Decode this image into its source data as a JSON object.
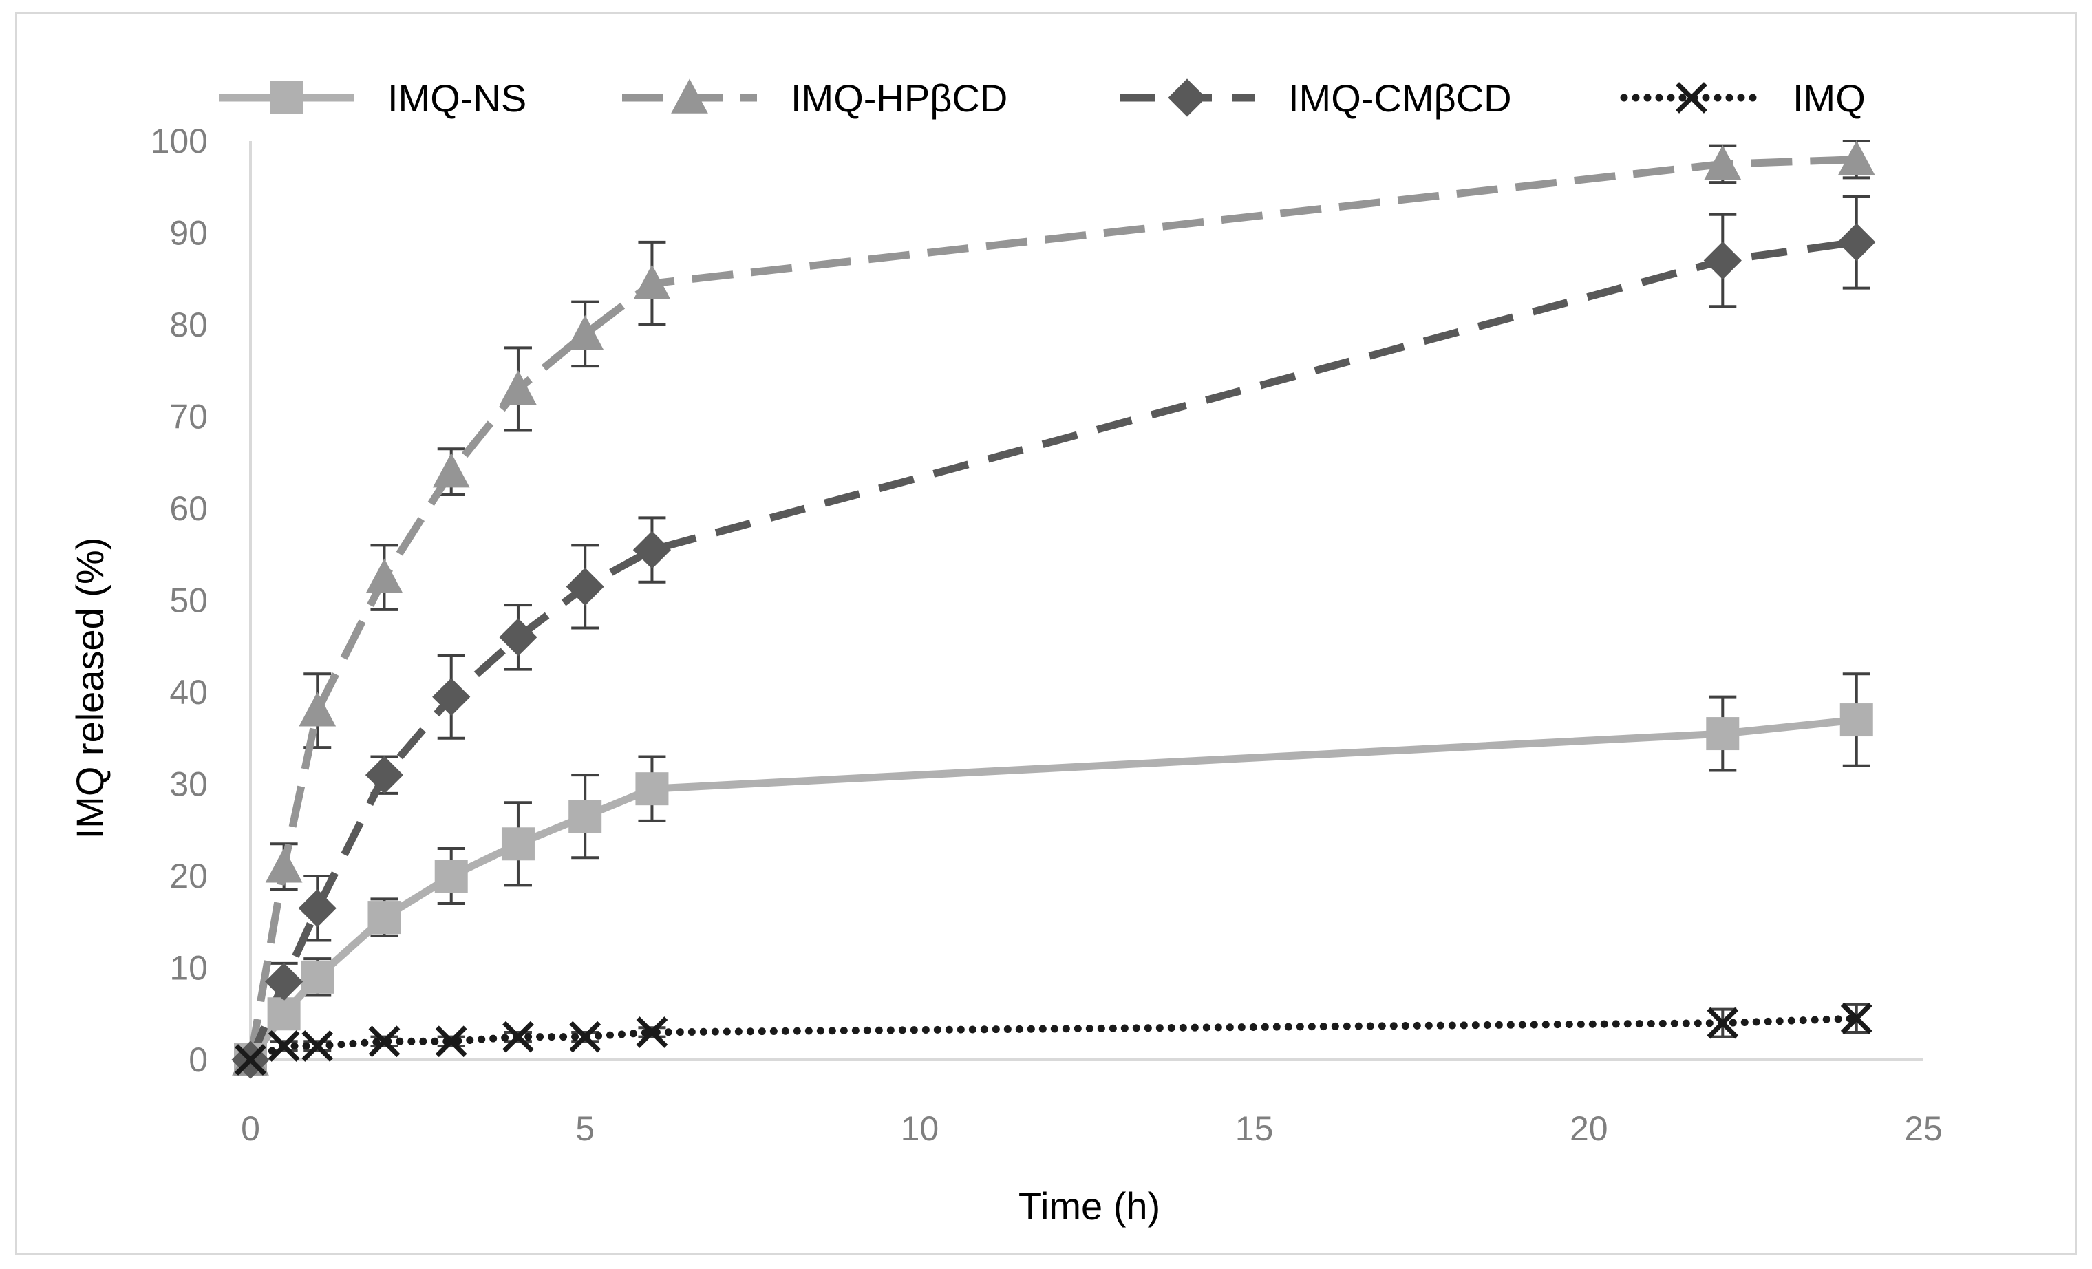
{
  "chart_data": {
    "type": "line",
    "title": "",
    "xlabel": "Time (h)",
    "ylabel": "IMQ released (%)",
    "xlim": [
      0,
      25
    ],
    "ylim": [
      0,
      100
    ],
    "xticks": [
      0,
      5,
      10,
      15,
      20,
      25
    ],
    "yticks": [
      0,
      10,
      20,
      30,
      40,
      50,
      60,
      70,
      80,
      90,
      100
    ],
    "grid": false,
    "legend_position": "top",
    "x": [
      0,
      0.5,
      1,
      2,
      3,
      4,
      5,
      6,
      22,
      24
    ],
    "series": [
      {
        "name": "IMQ-NS",
        "marker": "square",
        "line_style": "solid",
        "color": "#b0b0b0",
        "values": [
          0,
          5,
          9,
          15.5,
          20,
          23.5,
          26.5,
          29.5,
          35.5,
          37
        ],
        "errors": [
          0,
          1.5,
          2,
          2,
          3,
          4.5,
          4.5,
          3.5,
          4,
          5
        ]
      },
      {
        "name": "IMQ-HPβCD",
        "marker": "triangle",
        "line_style": "long-dash",
        "color": "#959595",
        "values": [
          0,
          21,
          38,
          52.5,
          64,
          73,
          79,
          84.5,
          97.5,
          98
        ],
        "errors": [
          0,
          2.5,
          4,
          3.5,
          2.5,
          4.5,
          3.5,
          4.5,
          2,
          2
        ]
      },
      {
        "name": "IMQ-CMβCD",
        "marker": "diamond",
        "line_style": "dash",
        "color": "#595959",
        "values": [
          0,
          8.5,
          16.5,
          31,
          39.5,
          46,
          51.5,
          55.5,
          87,
          89
        ],
        "errors": [
          0,
          2,
          3.5,
          2,
          4.5,
          3.5,
          4.5,
          3.5,
          5,
          5
        ]
      },
      {
        "name": "IMQ",
        "marker": "x",
        "line_style": "dotted",
        "color": "#1a1a1a",
        "values": [
          0,
          1.5,
          1.5,
          2,
          2,
          2.5,
          2.5,
          3,
          4,
          4.5
        ],
        "errors": [
          0,
          0.5,
          0.5,
          0.5,
          0.5,
          0.5,
          0.5,
          0.5,
          1.5,
          1.5
        ]
      }
    ]
  }
}
